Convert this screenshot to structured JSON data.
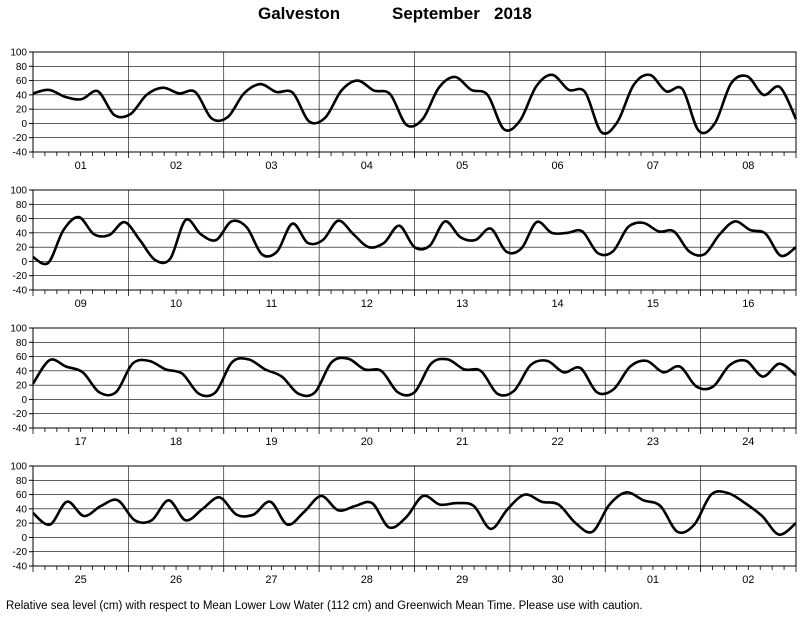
{
  "header": {
    "station": "Galveston",
    "month": "September",
    "year": "2018"
  },
  "footnote": "Relative sea level (cm) with respect to Mean Lower Low Water (112 cm) and Greenwich Mean Time. Please use with caution.",
  "chart_data": {
    "type": "line",
    "title": "Galveston September 2018",
    "ylabel": "",
    "ylim": [
      -40,
      100
    ],
    "y_ticks": [
      -40,
      -20,
      0,
      20,
      40,
      60,
      80,
      100
    ],
    "grid": true,
    "panels": [
      {
        "days": [
          "01",
          "02",
          "03",
          "04",
          "05",
          "06",
          "07",
          "08"
        ],
        "series": [
          {
            "values": [
              42,
              47,
              37,
              34,
              45,
              12,
              13,
              40,
              50,
              42,
              44,
              7,
              9,
              42,
              55,
              44,
              43,
              3,
              8,
              46,
              60,
              46,
              41,
              -2,
              6,
              50,
              65,
              47,
              40,
              -8,
              4,
              52,
              68,
              47,
              44,
              -12,
              2,
              54,
              68,
              45,
              48,
              -10,
              0,
              56,
              66,
              40,
              51,
              6
            ]
          }
        ]
      },
      {
        "days": [
          "09",
          "10",
          "11",
          "12",
          "13",
          "14",
          "15",
          "16"
        ],
        "series": [
          {
            "values": [
              6,
              -2,
              44,
              62,
              38,
              37,
              55,
              30,
              2,
              4,
              58,
              38,
              30,
              56,
              48,
              10,
              14,
              53,
              26,
              30,
              57,
              38,
              20,
              26,
              50,
              20,
              22,
              56,
              34,
              30,
              46,
              14,
              18,
              55,
              40,
              40,
              42,
              12,
              14,
              48,
              54,
              42,
              42,
              14,
              10,
              38,
              56,
              44,
              39,
              8,
              20
            ]
          }
        ]
      },
      {
        "days": [
          "17",
          "18",
          "19",
          "20",
          "21",
          "22",
          "23",
          "24"
        ],
        "series": [
          {
            "values": [
              22,
              55,
              46,
              38,
              10,
              10,
              50,
              54,
              42,
              36,
              8,
              10,
              52,
              56,
              42,
              32,
              8,
              10,
              52,
              57,
              42,
              40,
              10,
              10,
              50,
              56,
              42,
              40,
              8,
              12,
              48,
              54,
              38,
              44,
              10,
              14,
              46,
              54,
              38,
              46,
              18,
              18,
              48,
              54,
              32,
              50,
              34
            ]
          }
        ]
      },
      {
        "days": [
          "25",
          "26",
          "27",
          "28",
          "29",
          "30",
          "01",
          "02"
        ],
        "series": [
          {
            "values": [
              34,
              18,
              50,
              30,
              44,
              52,
              24,
              24,
              52,
              24,
              40,
              56,
              32,
              32,
              50,
              18,
              36,
              58,
              38,
              44,
              48,
              14,
              28,
              58,
              46,
              48,
              44,
              12,
              40,
              60,
              50,
              46,
              20,
              8,
              46,
              63,
              52,
              44,
              8,
              18,
              60,
              62,
              48,
              30,
              4,
              20
            ]
          }
        ]
      }
    ]
  }
}
